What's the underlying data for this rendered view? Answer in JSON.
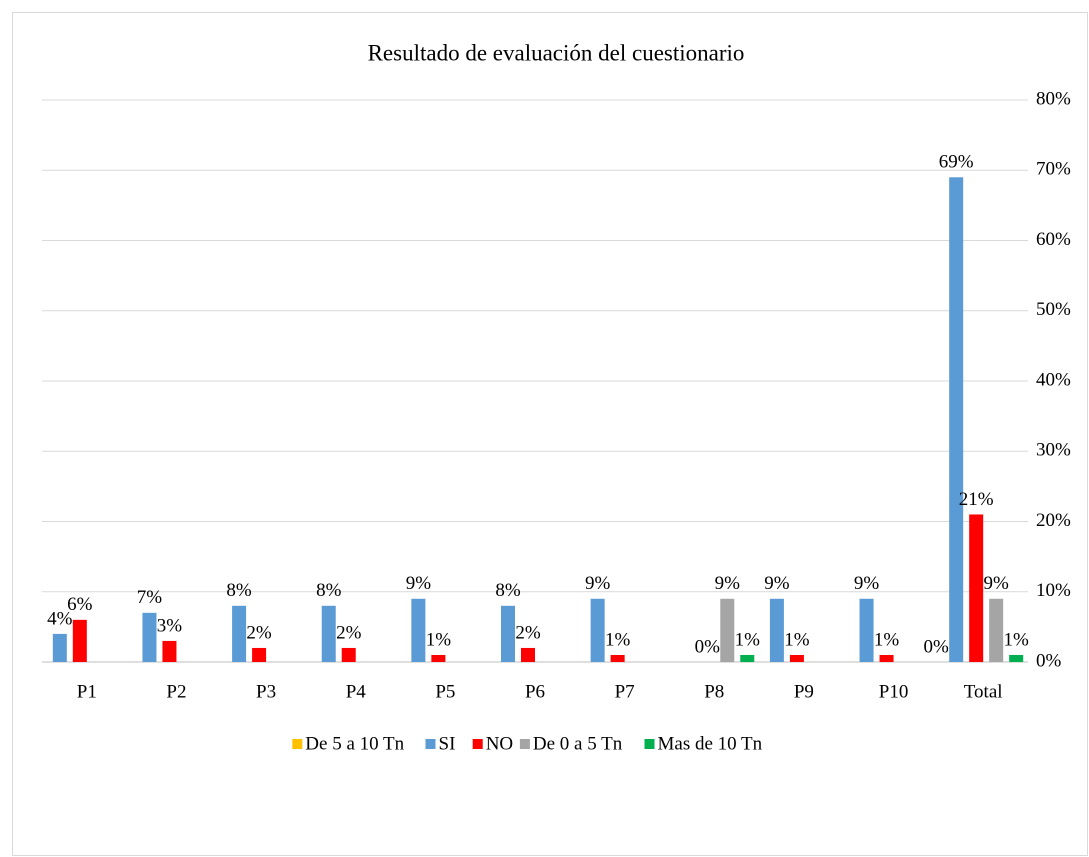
{
  "chart_data": {
    "type": "bar",
    "title": "Resultado de evaluación del cuestionario",
    "categories": [
      "P1",
      "P2",
      "P3",
      "P4",
      "P5",
      "P6",
      "P7",
      "P8",
      "P9",
      "P10",
      "Total"
    ],
    "series": [
      {
        "name": "De 5 a 10 Tn",
        "color": "#FFC000",
        "values": [
          null,
          null,
          null,
          null,
          null,
          null,
          null,
          null,
          null,
          null,
          0
        ],
        "value_labels": [
          null,
          null,
          null,
          null,
          null,
          null,
          null,
          null,
          null,
          null,
          "0%"
        ]
      },
      {
        "name": "SI",
        "color": "#5B9BD5",
        "values": [
          4,
          7,
          8,
          8,
          9,
          8,
          9,
          null,
          9,
          9,
          69
        ],
        "value_labels": [
          "4%",
          "7%",
          "8%",
          "8%",
          "9%",
          "8%",
          "9%",
          null,
          "9%",
          "9%",
          "69%"
        ]
      },
      {
        "name": "NO",
        "color": "#FF0000",
        "values": [
          6,
          3,
          2,
          2,
          1,
          2,
          1,
          0,
          1,
          1,
          21
        ],
        "value_labels": [
          "6%",
          "3%",
          "2%",
          "2%",
          "1%",
          "2%",
          "1%",
          "0%",
          "1%",
          "1%",
          "21%"
        ]
      },
      {
        "name": "De 0 a 5 Tn",
        "color": "#A5A5A5",
        "values": [
          null,
          null,
          null,
          null,
          null,
          null,
          null,
          9,
          null,
          null,
          9
        ],
        "value_labels": [
          null,
          null,
          null,
          null,
          null,
          null,
          null,
          "9%",
          null,
          null,
          "9%"
        ]
      },
      {
        "name": "Mas de 10 Tn",
        "color": "#00B050",
        "values": [
          null,
          null,
          null,
          null,
          null,
          null,
          null,
          1,
          null,
          null,
          1
        ],
        "value_labels": [
          null,
          null,
          null,
          null,
          null,
          null,
          null,
          "1%",
          null,
          null,
          "1%"
        ]
      }
    ],
    "ylim": [
      0,
      80
    ],
    "yticks": [
      {
        "value": 0,
        "label": "0%"
      },
      {
        "value": 10,
        "label": "10%"
      },
      {
        "value": 20,
        "label": "20%"
      },
      {
        "value": 30,
        "label": "30%"
      },
      {
        "value": 40,
        "label": "40%"
      },
      {
        "value": 50,
        "label": "50%"
      },
      {
        "value": 60,
        "label": "60%"
      },
      {
        "value": 70,
        "label": "70%"
      },
      {
        "value": 80,
        "label": "80%"
      }
    ],
    "y_axis_side": "right",
    "grid": true,
    "legend": "bottom"
  }
}
